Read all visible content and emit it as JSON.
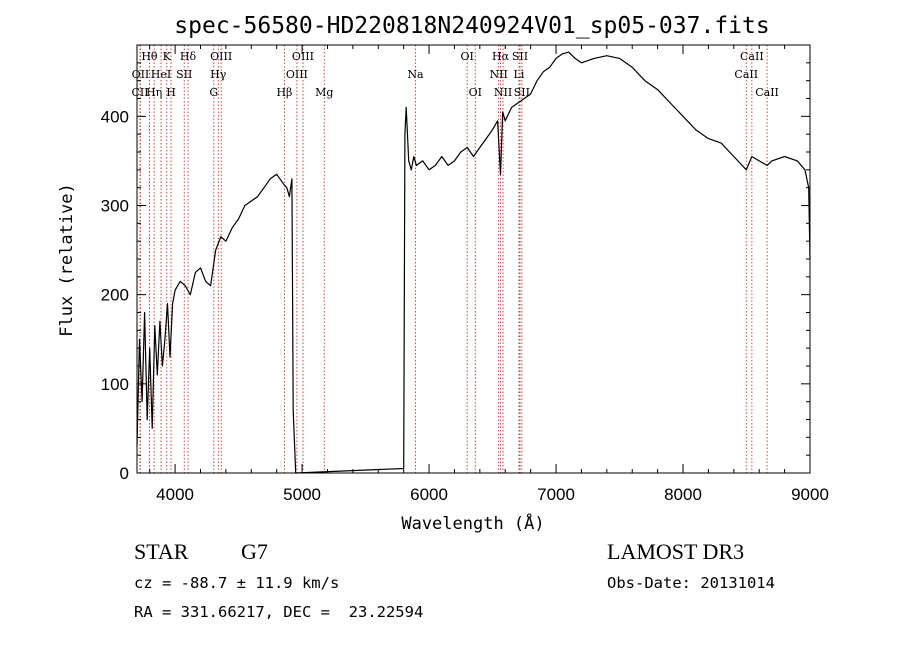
{
  "chart_data": {
    "type": "line",
    "title": "spec-56580-HD220818N240924V01_sp05-037.fits",
    "xlabel": "Wavelength (Å)",
    "ylabel": "Flux (relative)",
    "xlim": [
      3700,
      9000
    ],
    "ylim": [
      0,
      480
    ],
    "x_ticks": [
      4000,
      5000,
      6000,
      7000,
      8000,
      9000
    ],
    "y_ticks": [
      0,
      100,
      200,
      300,
      400
    ],
    "grid": false,
    "line_color": "#000000",
    "marker_color": "#c0392b",
    "series": [
      {
        "x": [
          3700,
          3720,
          3740,
          3760,
          3780,
          3800,
          3820,
          3840,
          3860,
          3880,
          3900,
          3920,
          3940,
          3960,
          3980,
          4000,
          4040,
          4080,
          4120,
          4160,
          4200,
          4240,
          4280,
          4320,
          4360,
          4400,
          4450,
          4500,
          4550,
          4600,
          4650,
          4700,
          4750,
          4800,
          4850,
          4880,
          4900,
          4920,
          4930,
          4950,
          5800,
          5810,
          5820,
          5840,
          5860,
          5880,
          5900,
          5950,
          6000,
          6050,
          6100,
          6150,
          6200,
          6250,
          6300,
          6350,
          6400,
          6450,
          6500,
          6540,
          6563,
          6580,
          6600,
          6650,
          6700,
          6750,
          6800,
          6850,
          6900,
          6950,
          7000,
          7050,
          7100,
          7150,
          7200,
          7300,
          7400,
          7500,
          7600,
          7700,
          7800,
          7900,
          8000,
          8100,
          8200,
          8300,
          8400,
          8498,
          8542,
          8600,
          8662,
          8700,
          8800,
          8900,
          8960,
          8990,
          9000
        ],
        "y": [
          30,
          150,
          80,
          180,
          60,
          140,
          50,
          165,
          110,
          170,
          120,
          150,
          190,
          130,
          190,
          205,
          215,
          210,
          200,
          225,
          230,
          215,
          210,
          250,
          265,
          260,
          275,
          285,
          300,
          305,
          310,
          320,
          330,
          335,
          325,
          320,
          310,
          330,
          70,
          0,
          5,
          380,
          410,
          350,
          340,
          355,
          345,
          350,
          340,
          345,
          355,
          345,
          350,
          360,
          365,
          355,
          365,
          375,
          385,
          395,
          335,
          405,
          395,
          410,
          415,
          420,
          425,
          440,
          450,
          455,
          465,
          470,
          472,
          465,
          460,
          465,
          468,
          465,
          455,
          440,
          430,
          415,
          400,
          385,
          375,
          370,
          355,
          340,
          355,
          350,
          345,
          350,
          355,
          350,
          340,
          320,
          240
        ]
      }
    ],
    "line_markers": [
      {
        "label": "CII",
        "x": 3724,
        "row": 2
      },
      {
        "label": "OII",
        "x": 3727,
        "row": 1
      },
      {
        "label": "Hθ",
        "x": 3798,
        "row": 0
      },
      {
        "label": "Hη",
        "x": 3835,
        "row": 2
      },
      {
        "label": "HeI",
        "x": 3889,
        "row": 1
      },
      {
        "label": "K",
        "x": 3934,
        "row": 0
      },
      {
        "label": "H",
        "x": 3968,
        "row": 2
      },
      {
        "label": "SII",
        "x": 4072,
        "row": 1
      },
      {
        "label": "Hδ",
        "x": 4102,
        "row": 0
      },
      {
        "label": "G",
        "x": 4305,
        "row": 2
      },
      {
        "label": "Hγ",
        "x": 4340,
        "row": 1
      },
      {
        "label": "OIII",
        "x": 4363,
        "row": 0
      },
      {
        "label": "Hβ",
        "x": 4861,
        "row": 2
      },
      {
        "label": "OIII",
        "x": 4959,
        "row": 1
      },
      {
        "label": "OIII",
        "x": 5007,
        "row": 0
      },
      {
        "label": "Mg",
        "x": 5175,
        "row": 2
      },
      {
        "label": "Na",
        "x": 5893,
        "row": 1
      },
      {
        "label": "OI",
        "x": 6300,
        "row": 0
      },
      {
        "label": "OI",
        "x": 6364,
        "row": 2
      },
      {
        "label": "NII",
        "x": 6548,
        "row": 1
      },
      {
        "label": "Hα",
        "x": 6563,
        "row": 0
      },
      {
        "label": "NII",
        "x": 6583,
        "row": 2
      },
      {
        "label": "Li",
        "x": 6708,
        "row": 1
      },
      {
        "label": "SII",
        "x": 6716,
        "row": 0
      },
      {
        "label": "SII",
        "x": 6731,
        "row": 2
      },
      {
        "label": "CaII",
        "x": 8498,
        "row": 1
      },
      {
        "label": "CaII",
        "x": 8542,
        "row": 0
      },
      {
        "label": "CaII",
        "x": 8662,
        "row": 2
      }
    ]
  },
  "footer": {
    "object_class": "STAR",
    "subclass": "G7",
    "survey": "LAMOST DR3",
    "velocity": "cz = -88.7 ± 11.9 km/s",
    "obs_date": "Obs-Date: 20131014",
    "coords": "RA = 331.66217, DEC =  23.22594"
  }
}
